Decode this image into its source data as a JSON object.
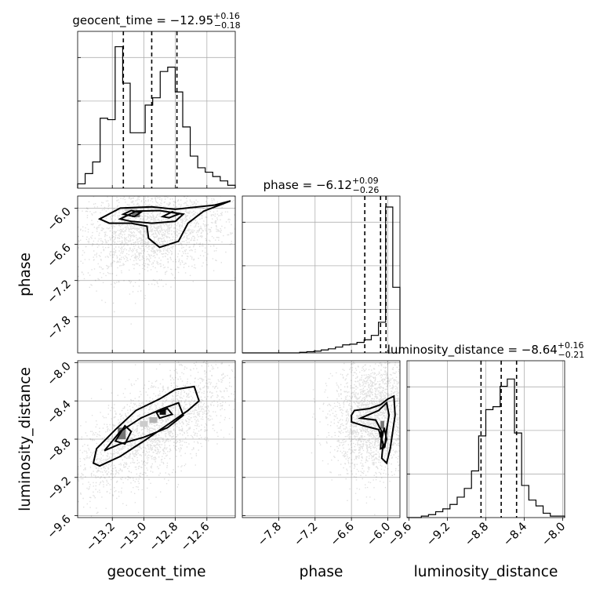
{
  "chart_data": {
    "type": "corner",
    "parameters": [
      {
        "name": "geocent_time",
        "title": {
          "prefix": "geocent_time = ",
          "value": "−12.95",
          "plus": "+0.16",
          "minus": "−0.18"
        },
        "range": [
          -13.42,
          -12.42
        ],
        "ticks": [
          -13.2,
          -13.0,
          -12.8,
          -12.6
        ],
        "tick_labels": [
          "−13.2",
          "−13.0",
          "−12.8",
          "−12.6"
        ],
        "quantiles": [
          -13.13,
          -12.95,
          -12.79
        ],
        "hist": [
          0.03,
          0.1,
          0.18,
          0.48,
          0.47,
          0.97,
          0.72,
          0.38,
          0.38,
          0.57,
          0.62,
          0.8,
          0.83,
          0.66,
          0.42,
          0.22,
          0.14,
          0.11,
          0.08,
          0.05,
          0.02
        ]
      },
      {
        "name": "phase",
        "title": {
          "prefix": "phase = ",
          "value": "−6.12",
          "plus": "+0.09",
          "minus": "−0.26"
        },
        "range": [
          -8.4,
          -5.8
        ],
        "ticks": [
          -7.8,
          -7.2,
          -6.6,
          -6.0
        ],
        "tick_labels": [
          "−7.8",
          "−7.2",
          "−6.6",
          "−6.0"
        ],
        "quantiles": [
          -6.38,
          -6.12,
          -6.03
        ],
        "hist": [
          0,
          0,
          0,
          0,
          0,
          0,
          0,
          0,
          0.004,
          0.008,
          0.012,
          0.02,
          0.028,
          0.04,
          0.055,
          0.06,
          0.072,
          0.09,
          0.12,
          0.21,
          1.0,
          0.45
        ]
      },
      {
        "name": "luminosity_distance",
        "title": {
          "prefix": "luminosity_distance = ",
          "value": "−8.64",
          "plus": "+0.16",
          "minus": "−0.21"
        },
        "range": [
          -9.62,
          -7.98
        ],
        "ticks": [
          -9.6,
          -9.2,
          -8.8,
          -8.4,
          -8.0
        ],
        "tick_labels": [
          "−9.6",
          "−9.2",
          "−8.8",
          "−8.4",
          "−8.0"
        ],
        "quantiles": [
          -8.85,
          -8.64,
          -8.48
        ],
        "hist": [
          0,
          0,
          0.01,
          0.02,
          0.04,
          0.06,
          0.09,
          0.14,
          0.2,
          0.32,
          0.56,
          0.74,
          0.76,
          0.9,
          0.95,
          0.58,
          0.22,
          0.12,
          0.08,
          0.03,
          0.01,
          0.01
        ]
      }
    ],
    "pairs": [
      {
        "x": "geocent_time",
        "y": "phase",
        "points_center": [
          -12.95,
          -6.35
        ],
        "points_spread": [
          0.18,
          0.35
        ],
        "correlation": 0.2,
        "contours": [
          [
            [
              -13.28,
              -6.18
            ],
            [
              -13.15,
              -6.0
            ],
            [
              -12.95,
              -5.98
            ],
            [
              -12.8,
              -6.02
            ],
            [
              -12.55,
              -5.95
            ],
            [
              -12.45,
              -5.88
            ],
            [
              -12.62,
              -6.05
            ],
            [
              -12.72,
              -6.25
            ],
            [
              -12.78,
              -6.55
            ],
            [
              -12.9,
              -6.65
            ],
            [
              -12.97,
              -6.5
            ],
            [
              -12.98,
              -6.3
            ],
            [
              -13.08,
              -6.25
            ],
            [
              -13.22,
              -6.25
            ],
            [
              -13.28,
              -6.18
            ]
          ],
          [
            [
              -13.15,
              -6.18
            ],
            [
              -13.05,
              -6.05
            ],
            [
              -12.9,
              -6.04
            ],
            [
              -12.75,
              -6.1
            ],
            [
              -12.8,
              -6.22
            ],
            [
              -12.95,
              -6.25
            ],
            [
              -13.08,
              -6.22
            ],
            [
              -13.15,
              -6.18
            ]
          ],
          [
            [
              -12.88,
              -6.14
            ],
            [
              -12.82,
              -6.06
            ],
            [
              -12.78,
              -6.1
            ],
            [
              -12.84,
              -6.16
            ],
            [
              -12.88,
              -6.14
            ]
          ],
          [
            [
              -13.13,
              -6.1
            ],
            [
              -13.08,
              -6.04
            ],
            [
              -13.02,
              -6.07
            ],
            [
              -13.06,
              -6.14
            ],
            [
              -13.13,
              -6.1
            ]
          ]
        ],
        "cells": [
          [
            -13.11,
            -6.11,
            0.03,
            0.08,
            0.08
          ],
          [
            -13.05,
            -6.11,
            0.05,
            0.08,
            0.55
          ],
          [
            -13.08,
            -6.02,
            0.08,
            0.06,
            0.2
          ]
        ]
      },
      {
        "x": "geocent_time",
        "y": "luminosity_distance",
        "points_center": [
          -12.95,
          -8.7
        ],
        "points_spread": [
          0.2,
          0.3
        ],
        "correlation": 0.7,
        "contours": [
          [
            [
              -13.32,
              -9.05
            ],
            [
              -13.3,
              -8.9
            ],
            [
              -13.18,
              -8.7
            ],
            [
              -13.05,
              -8.5
            ],
            [
              -12.9,
              -8.38
            ],
            [
              -12.8,
              -8.28
            ],
            [
              -12.68,
              -8.25
            ],
            [
              -12.65,
              -8.4
            ],
            [
              -12.72,
              -8.5
            ],
            [
              -12.85,
              -8.65
            ],
            [
              -13.0,
              -8.82
            ],
            [
              -13.15,
              -8.98
            ],
            [
              -13.28,
              -9.08
            ],
            [
              -13.32,
              -9.05
            ]
          ],
          [
            [
              -13.25,
              -8.92
            ],
            [
              -13.15,
              -8.72
            ],
            [
              -13.02,
              -8.58
            ],
            [
              -12.88,
              -8.48
            ],
            [
              -12.78,
              -8.42
            ],
            [
              -12.75,
              -8.55
            ],
            [
              -12.85,
              -8.68
            ],
            [
              -13.0,
              -8.78
            ],
            [
              -13.15,
              -8.85
            ],
            [
              -13.25,
              -8.92
            ]
          ],
          [
            [
              -12.92,
              -8.52
            ],
            [
              -12.85,
              -8.48
            ],
            [
              -12.82,
              -8.54
            ],
            [
              -12.9,
              -8.58
            ],
            [
              -12.92,
              -8.52
            ]
          ],
          [
            [
              -13.18,
              -8.82
            ],
            [
              -13.12,
              -8.66
            ],
            [
              -13.08,
              -8.72
            ],
            [
              -13.12,
              -8.85
            ],
            [
              -13.18,
              -8.82
            ]
          ]
        ],
        "cells": [
          [
            -13.14,
            -8.74,
            0.05,
            0.12,
            0.55
          ],
          [
            -12.88,
            -8.52,
            0.04,
            0.05,
            0.95
          ],
          [
            -13.0,
            -8.64,
            0.05,
            0.06,
            0.2
          ],
          [
            -12.94,
            -8.6,
            0.05,
            0.06,
            0.3
          ]
        ]
      },
      {
        "x": "phase",
        "y": "luminosity_distance",
        "points_center": [
          -6.25,
          -8.55
        ],
        "points_spread": [
          0.25,
          0.28
        ],
        "correlation": 0.1,
        "contours": [
          [
            [
              -6.6,
              -8.55
            ],
            [
              -6.6,
              -8.62
            ],
            [
              -6.4,
              -8.66
            ],
            [
              -6.15,
              -8.7
            ],
            [
              -6.08,
              -8.85
            ],
            [
              -6.1,
              -9.0
            ],
            [
              -6.02,
              -9.05
            ],
            [
              -5.96,
              -8.9
            ],
            [
              -5.88,
              -8.55
            ],
            [
              -5.9,
              -8.35
            ],
            [
              -6.0,
              -8.38
            ],
            [
              -6.12,
              -8.44
            ],
            [
              -6.3,
              -8.48
            ],
            [
              -6.55,
              -8.5
            ],
            [
              -6.6,
              -8.55
            ]
          ],
          [
            [
              -6.45,
              -8.58
            ],
            [
              -6.2,
              -8.6
            ],
            [
              -6.1,
              -8.72
            ],
            [
              -6.12,
              -8.9
            ],
            [
              -6.05,
              -8.88
            ],
            [
              -6.02,
              -8.7
            ],
            [
              -5.98,
              -8.55
            ],
            [
              -6.02,
              -8.42
            ],
            [
              -6.15,
              -8.5
            ],
            [
              -6.45,
              -8.58
            ]
          ],
          [
            [
              -6.1,
              -8.8
            ],
            [
              -6.06,
              -8.68
            ],
            [
              -6.02,
              -8.8
            ],
            [
              -6.06,
              -8.88
            ],
            [
              -6.1,
              -8.8
            ]
          ]
        ],
        "cells": [
          [
            -6.11,
            -8.75,
            0.06,
            0.06,
            0.95
          ],
          [
            -6.09,
            -8.65,
            0.06,
            0.08,
            0.55
          ],
          [
            -6.03,
            -8.45,
            0.05,
            0.1,
            0.2
          ]
        ]
      }
    ]
  }
}
